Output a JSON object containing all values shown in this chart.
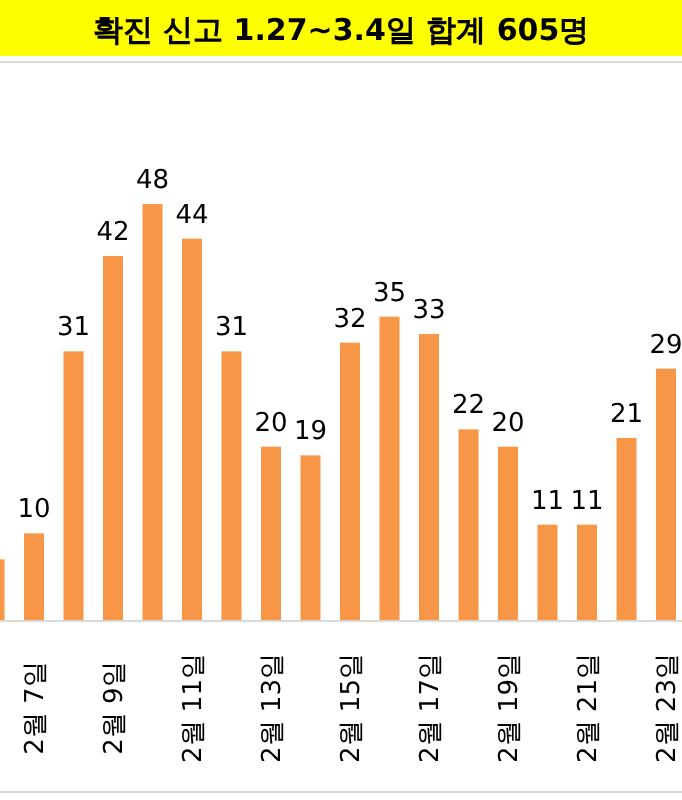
{
  "chart_data": {
    "type": "bar",
    "title": "확진 신고 1.27~3.4일 합계 605명",
    "categories": [
      null,
      "2월 7일",
      null,
      "2월 9일",
      null,
      "2월 11일",
      null,
      "2월 13일",
      null,
      "2월 15일",
      null,
      "2월 17일",
      null,
      "2월 19일",
      null,
      "2월 21일",
      null,
      "2월 23일"
    ],
    "values": [
      7,
      10,
      31,
      42,
      48,
      44,
      31,
      20,
      19,
      32,
      35,
      33,
      22,
      20,
      11,
      11,
      21,
      29
    ],
    "value_labels": [
      null,
      "10",
      "31",
      "42",
      "48",
      "44",
      "31",
      "20",
      "19",
      "32",
      "35",
      "33",
      "22",
      "20",
      "11",
      "11",
      "21",
      "29"
    ],
    "color": "#f79646"
  }
}
